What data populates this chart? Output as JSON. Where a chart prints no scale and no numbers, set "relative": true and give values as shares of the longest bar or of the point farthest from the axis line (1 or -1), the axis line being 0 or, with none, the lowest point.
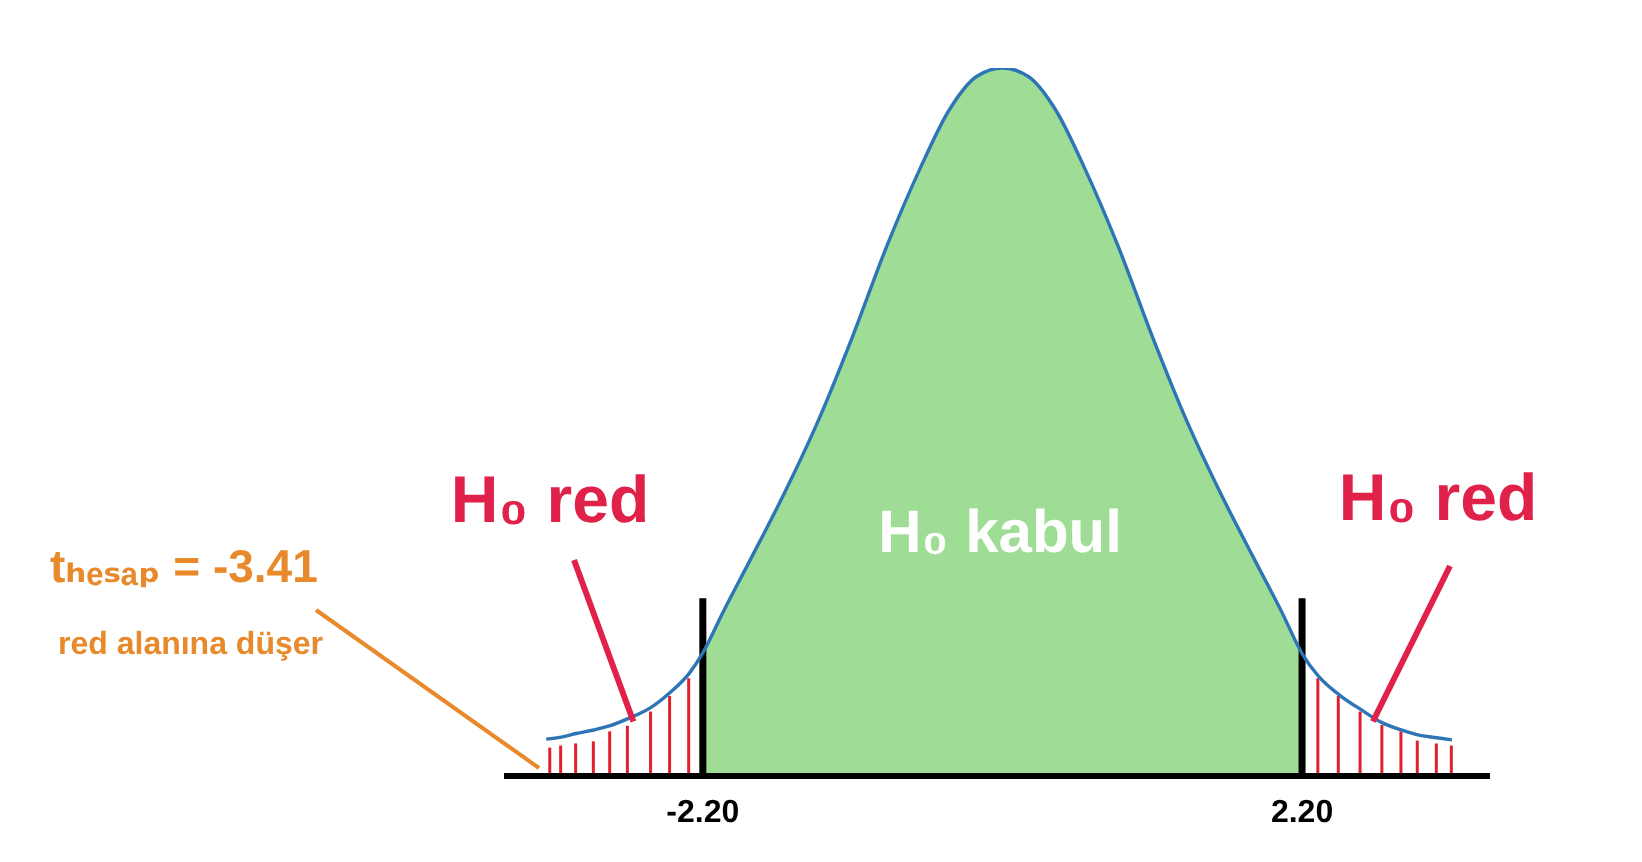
{
  "chart_data": {
    "type": "line",
    "relative": true,
    "xlim": [
      -3.66,
      3.58
    ],
    "xticks": [
      {
        "value": -2.2,
        "label": "-2.20"
      },
      {
        "value": 2.2,
        "label": "2.20"
      }
    ],
    "series": [
      {
        "type": "area",
        "color": "#9fdc95",
        "x": [
          -2.2,
          -2.05,
          -1.85,
          -1.6,
          -1.35,
          -1.1,
          -0.85,
          -0.6,
          -0.39,
          -0.19,
          0,
          0.19,
          0.39,
          0.6,
          0.85,
          1.1,
          1.35,
          1.6,
          1.85,
          2.05,
          2.2
        ],
        "values": [
          0.174,
          0.232,
          0.306,
          0.4,
          0.503,
          0.621,
          0.748,
          0.86,
          0.941,
          0.988,
          1,
          0.988,
          0.941,
          0.86,
          0.748,
          0.621,
          0.503,
          0.4,
          0.306,
          0.232,
          0.173
        ]
      },
      {
        "type": "bar",
        "color": "#e0202e",
        "x": [
          -3.32,
          -3.24,
          -3.13,
          -3.0,
          -2.88,
          -2.75,
          -2.58,
          -2.44,
          -2.3,
          2.32,
          2.47,
          2.63,
          2.79,
          2.93,
          3.05,
          3.19,
          3.3
        ],
        "values": [
          0.04,
          0.043,
          0.046,
          0.049,
          0.063,
          0.071,
          0.091,
          0.113,
          0.138,
          0.138,
          0.113,
          0.091,
          0.072,
          0.063,
          0.05,
          0.046,
          0.043
        ]
      },
      {
        "color": "#2e75b6",
        "x": [
          -3.35,
          -3.24,
          -3.13,
          -3.0,
          -2.88,
          -2.75,
          -2.58,
          -2.44,
          -2.3,
          -2.2,
          -2.05,
          -1.85,
          -1.6,
          -1.35,
          -1.1,
          -0.85,
          -0.6,
          -0.39,
          -0.19,
          0,
          0.19,
          0.39,
          0.6,
          0.85,
          1.1,
          1.35,
          1.6,
          1.85,
          2.05,
          2.2,
          2.32,
          2.47,
          2.63,
          2.79,
          2.93,
          3.05,
          3.19,
          3.3
        ],
        "values": [
          0.052,
          0.055,
          0.06,
          0.065,
          0.071,
          0.081,
          0.097,
          0.118,
          0.145,
          0.174,
          0.232,
          0.306,
          0.4,
          0.503,
          0.621,
          0.748,
          0.86,
          0.941,
          0.988,
          1,
          0.988,
          0.941,
          0.86,
          0.748,
          0.621,
          0.503,
          0.4,
          0.306,
          0.232,
          0.173,
          0.141,
          0.115,
          0.094,
          0.075,
          0.065,
          0.058,
          0.054,
          0.051
        ]
      }
    ],
    "ref_lines": [
      {
        "axis": "x",
        "value": -2.2,
        "color": "#000000"
      },
      {
        "axis": "x",
        "value": 2.2,
        "color": "#000000"
      }
    ],
    "annotations": [
      {
        "text": "H₀ red",
        "x": -2.71,
        "y": 0.077
      },
      {
        "text": "H₀ red",
        "x": 2.72,
        "y": 0.077
      },
      "H₀ kabul",
      "tₕₑₛₐₚ = -3.41",
      "red alanına düşer"
    ]
  }
}
